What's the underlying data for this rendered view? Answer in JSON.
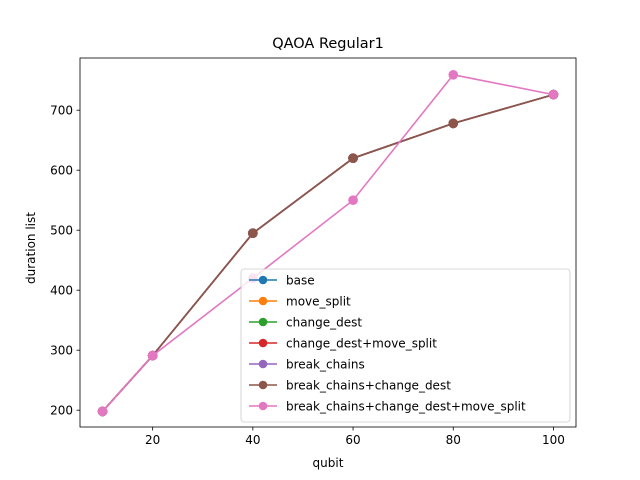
{
  "chart_data": {
    "type": "line",
    "title": "QAOA Regular1",
    "xlabel": "qubit",
    "ylabel": "duration list",
    "xlim": [
      5.5,
      104.5
    ],
    "ylim": [
      172,
      787
    ],
    "xticks": [
      20,
      40,
      60,
      80,
      100
    ],
    "yticks": [
      200,
      300,
      400,
      500,
      600,
      700
    ],
    "grid": false,
    "legend_position": "lower-right",
    "series": [
      {
        "name": "base",
        "color": "#1f77b4",
        "x": [
          10,
          20,
          40,
          60,
          80,
          100
        ],
        "y": [
          198,
          291,
          495,
          620,
          678,
          726
        ]
      },
      {
        "name": "move_split",
        "color": "#ff7f0e",
        "x": [
          10,
          20,
          40,
          60,
          80,
          100
        ],
        "y": [
          198,
          291,
          495,
          620,
          678,
          726
        ]
      },
      {
        "name": "change_dest",
        "color": "#2ca02c",
        "x": [
          10,
          20,
          40,
          60,
          80,
          100
        ],
        "y": [
          198,
          291,
          495,
          620,
          678,
          726
        ]
      },
      {
        "name": "change_dest+move_split",
        "color": "#d62728",
        "x": [
          10,
          20,
          40,
          60,
          80,
          100
        ],
        "y": [
          198,
          291,
          495,
          620,
          678,
          726
        ]
      },
      {
        "name": "break_chains",
        "color": "#9467bd",
        "x": [
          10,
          20,
          40,
          60,
          80,
          100
        ],
        "y": [
          198,
          291,
          495,
          620,
          678,
          726
        ]
      },
      {
        "name": "break_chains+change_dest",
        "color": "#8c564b",
        "x": [
          10,
          20,
          40,
          60,
          80,
          100
        ],
        "y": [
          198,
          291,
          495,
          620,
          678,
          726
        ]
      },
      {
        "name": "break_chains+change_dest+move_split",
        "color": "#e377c2",
        "x": [
          10,
          20,
          40,
          60,
          80,
          100
        ],
        "y": [
          198,
          291,
          420,
          550,
          759,
          726
        ]
      }
    ]
  }
}
